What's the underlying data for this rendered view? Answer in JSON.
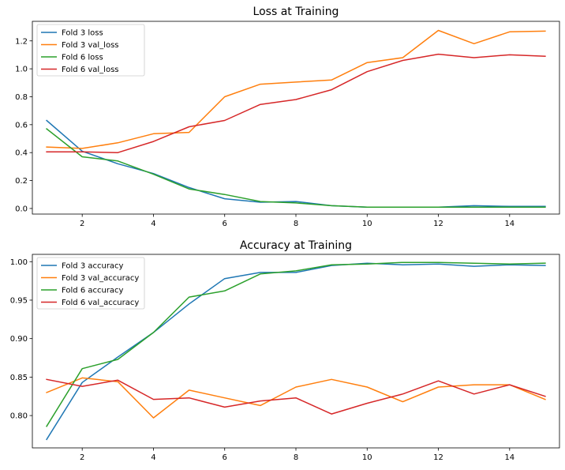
{
  "chart_data": [
    {
      "type": "line",
      "title": "Loss at Training",
      "xlabel": "",
      "ylabel": "",
      "x": [
        1,
        2,
        3,
        4,
        5,
        6,
        7,
        8,
        9,
        10,
        11,
        12,
        13,
        14,
        15
      ],
      "xlim": [
        0.6,
        15.4
      ],
      "ylim": [
        -0.04,
        1.34
      ],
      "xticks": [
        2,
        4,
        6,
        8,
        10,
        12,
        14
      ],
      "yticks": [
        0.0,
        0.2,
        0.4,
        0.6,
        0.8,
        1.0,
        1.2
      ],
      "ytick_labels": [
        "0.0",
        "0.2",
        "0.4",
        "0.6",
        "0.8",
        "1.0",
        "1.2"
      ],
      "grid": false,
      "legend_position": "top-left",
      "series": [
        {
          "name": "Fold 3 loss",
          "color": "#1f77b4",
          "values": [
            0.63,
            0.41,
            0.32,
            0.25,
            0.15,
            0.07,
            0.045,
            0.05,
            0.02,
            0.01,
            0.01,
            0.01,
            0.02,
            0.015,
            0.015
          ]
        },
        {
          "name": "Fold 3 val_loss",
          "color": "#ff7f0e",
          "values": [
            0.44,
            0.43,
            0.47,
            0.535,
            0.545,
            0.8,
            0.89,
            0.905,
            0.92,
            1.045,
            1.08,
            1.275,
            1.18,
            1.265,
            1.27
          ]
        },
        {
          "name": "Fold 6 loss",
          "color": "#2ca02c",
          "values": [
            0.57,
            0.37,
            0.34,
            0.245,
            0.14,
            0.1,
            0.05,
            0.04,
            0.02,
            0.01,
            0.01,
            0.01,
            0.01,
            0.01,
            0.01
          ]
        },
        {
          "name": "Fold 6 val_loss",
          "color": "#d62728",
          "values": [
            0.405,
            0.405,
            0.4,
            0.48,
            0.585,
            0.63,
            0.745,
            0.78,
            0.85,
            0.98,
            1.06,
            1.105,
            1.08,
            1.1,
            1.09
          ]
        }
      ]
    },
    {
      "type": "line",
      "title": "Accuracy at Training",
      "xlabel": "",
      "ylabel": "",
      "x": [
        1,
        2,
        3,
        4,
        5,
        6,
        7,
        8,
        9,
        10,
        11,
        12,
        13,
        14,
        15
      ],
      "xlim": [
        0.6,
        15.4
      ],
      "ylim": [
        0.758,
        1.0095
      ],
      "xticks": [
        2,
        4,
        6,
        8,
        10,
        12,
        14
      ],
      "yticks": [
        0.8,
        0.85,
        0.9,
        0.95,
        1.0
      ],
      "ytick_labels": [
        "0.80",
        "0.85",
        "0.90",
        "0.95",
        "1.00"
      ],
      "grid": false,
      "legend_position": "top-left",
      "series": [
        {
          "name": "Fold 3 accuracy",
          "color": "#1f77b4",
          "values": [
            0.769,
            0.843,
            0.876,
            0.908,
            0.945,
            0.978,
            0.986,
            0.986,
            0.995,
            0.998,
            0.996,
            0.997,
            0.994,
            0.996,
            0.995
          ]
        },
        {
          "name": "Fold 3 val_accuracy",
          "color": "#ff7f0e",
          "values": [
            0.83,
            0.849,
            0.844,
            0.797,
            0.833,
            0.823,
            0.813,
            0.837,
            0.847,
            0.837,
            0.818,
            0.837,
            0.84,
            0.84,
            0.821
          ]
        },
        {
          "name": "Fold 6 accuracy",
          "color": "#2ca02c",
          "values": [
            0.786,
            0.861,
            0.873,
            0.908,
            0.954,
            0.962,
            0.984,
            0.988,
            0.996,
            0.997,
            0.999,
            0.999,
            0.998,
            0.997,
            0.998
          ]
        },
        {
          "name": "Fold 6 val_accuracy",
          "color": "#d62728",
          "values": [
            0.847,
            0.838,
            0.846,
            0.821,
            0.823,
            0.811,
            0.819,
            0.823,
            0.802,
            0.816,
            0.828,
            0.845,
            0.828,
            0.84,
            0.825
          ]
        }
      ]
    }
  ]
}
